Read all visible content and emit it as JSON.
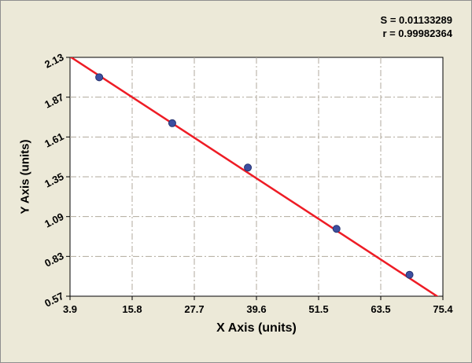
{
  "chart_data": {
    "type": "scatter",
    "title": "",
    "xlabel": "X Axis (units)",
    "ylabel": "Y Axis (units)",
    "xlim": [
      3.9,
      75.4
    ],
    "ylim": [
      0.57,
      2.13
    ],
    "x_ticks": [
      "3.9",
      "15.8",
      "27.7",
      "39.6",
      "51.5",
      "63.5",
      "75.4"
    ],
    "y_ticks": [
      "0.57",
      "0.83",
      "1.09",
      "1.35",
      "1.61",
      "1.87",
      "2.13"
    ],
    "grid": "dashed",
    "legend": "none",
    "points": [
      {
        "x": 9.5,
        "y": 2.0
      },
      {
        "x": 23.5,
        "y": 1.7
      },
      {
        "x": 38.0,
        "y": 1.41
      },
      {
        "x": 55.0,
        "y": 1.01
      },
      {
        "x": 69.0,
        "y": 0.71
      }
    ],
    "fit_line": {
      "x1": 3.9,
      "y1": 2.135,
      "x2": 75.4,
      "y2": 0.545
    },
    "annotations": [
      {
        "label": "S = 0.01133289"
      },
      {
        "label": "r = 0.99982364"
      }
    ],
    "colors": {
      "background": "#ece9d8",
      "plot_background": "#ffffff",
      "grid": "#b0aa9c",
      "line": "#ee1c25",
      "point_fill": "#3d4fa1",
      "point_edge": "#27346f",
      "text": "#000000"
    }
  }
}
